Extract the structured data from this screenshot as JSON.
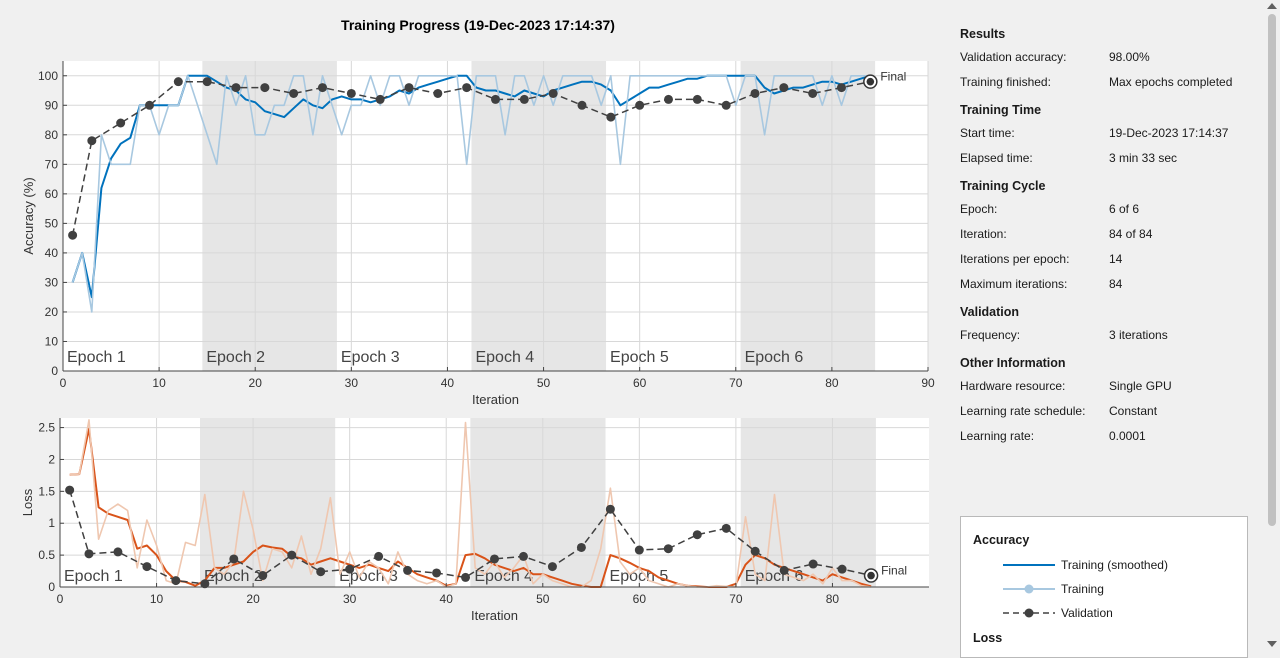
{
  "chart_data": [
    {
      "type": "line",
      "title": "Training Progress (19-Dec-2023 17:14:37)",
      "xlabel": "Iteration",
      "ylabel": "Accuracy (%)",
      "xlim": [
        0,
        90
      ],
      "ylim": [
        0,
        105
      ],
      "xticks": [
        0,
        10,
        20,
        30,
        40,
        50,
        60,
        70,
        80,
        90
      ],
      "yticks": [
        0,
        10,
        20,
        30,
        40,
        50,
        60,
        70,
        80,
        90,
        100
      ],
      "grid": true,
      "epochs": [
        {
          "label": "Epoch 1",
          "start": 0,
          "end": 14.5,
          "shaded": false
        },
        {
          "label": "Epoch 2",
          "start": 14.5,
          "end": 28.5,
          "shaded": true
        },
        {
          "label": "Epoch 3",
          "start": 28.5,
          "end": 42.5,
          "shaded": false
        },
        {
          "label": "Epoch 4",
          "start": 42.5,
          "end": 56.5,
          "shaded": true
        },
        {
          "label": "Epoch 5",
          "start": 56.5,
          "end": 70.5,
          "shaded": false
        },
        {
          "label": "Epoch 6",
          "start": 70.5,
          "end": 84.5,
          "shaded": true
        }
      ],
      "final_label": "Final",
      "series": [
        {
          "name": "Training (smoothed)",
          "color": "#0072bd",
          "x": [
            1,
            2,
            3,
            4,
            5,
            6,
            7,
            8,
            9,
            10,
            11,
            12,
            13,
            14,
            15,
            16,
            17,
            18,
            19,
            20,
            21,
            22,
            23,
            24,
            25,
            26,
            27,
            28,
            29,
            30,
            31,
            32,
            33,
            34,
            35,
            36,
            37,
            38,
            39,
            40,
            41,
            42,
            43,
            44,
            45,
            46,
            47,
            48,
            49,
            50,
            51,
            52,
            53,
            54,
            55,
            56,
            57,
            58,
            59,
            60,
            61,
            62,
            63,
            64,
            65,
            66,
            67,
            68,
            69,
            70,
            71,
            72,
            73,
            74,
            75,
            76,
            77,
            78,
            79,
            80,
            81,
            82,
            83,
            84
          ],
          "values": [
            30,
            40,
            25,
            62,
            72,
            77,
            79,
            90,
            90,
            90,
            90,
            90,
            100,
            100,
            100,
            98,
            96,
            95,
            92,
            91,
            88,
            87,
            86,
            89,
            92,
            90,
            89,
            92,
            93,
            92,
            92,
            91,
            92,
            93,
            95,
            94,
            96,
            97,
            98,
            99,
            100,
            100,
            96,
            95,
            95,
            94,
            93,
            95,
            94,
            93,
            95,
            96,
            97,
            98,
            98,
            97,
            95,
            90,
            92,
            94,
            96,
            96,
            97,
            98,
            99,
            99,
            100,
            100,
            100,
            100,
            100,
            100,
            96,
            94,
            95,
            96,
            96,
            97,
            98,
            98,
            97,
            98,
            99,
            100
          ]
        },
        {
          "name": "Training",
          "color": "#a8c8e0",
          "x": [
            1,
            2,
            3,
            4,
            5,
            6,
            7,
            8,
            9,
            10,
            11,
            12,
            13,
            14,
            15,
            16,
            17,
            18,
            19,
            20,
            21,
            22,
            23,
            24,
            25,
            26,
            27,
            28,
            29,
            30,
            31,
            32,
            33,
            34,
            35,
            36,
            37,
            38,
            39,
            40,
            41,
            42,
            43,
            44,
            45,
            46,
            47,
            48,
            49,
            50,
            51,
            52,
            53,
            54,
            55,
            56,
            57,
            58,
            59,
            60,
            61,
            62,
            63,
            64,
            65,
            66,
            67,
            68,
            69,
            70,
            71,
            72,
            73,
            74,
            75,
            76,
            77,
            78,
            79,
            80,
            81,
            82,
            83,
            84
          ],
          "values": [
            30,
            40,
            20,
            80,
            70,
            70,
            70,
            90,
            90,
            80,
            90,
            90,
            100,
            90,
            80,
            70,
            100,
            90,
            100,
            80,
            80,
            90,
            90,
            100,
            100,
            80,
            100,
            90,
            80,
            90,
            90,
            100,
            90,
            100,
            100,
            90,
            100,
            100,
            100,
            100,
            100,
            70,
            100,
            100,
            100,
            80,
            100,
            100,
            90,
            100,
            90,
            100,
            100,
            100,
            100,
            90,
            100,
            70,
            100,
            100,
            100,
            100,
            100,
            100,
            100,
            100,
            100,
            100,
            100,
            90,
            100,
            100,
            80,
            100,
            100,
            100,
            100,
            100,
            90,
            100,
            90,
            100,
            100,
            100
          ]
        },
        {
          "name": "Validation",
          "color": "#404040",
          "x": [
            1,
            3,
            6,
            9,
            12,
            15,
            18,
            21,
            24,
            27,
            30,
            33,
            36,
            39,
            42,
            45,
            48,
            51,
            54,
            57,
            60,
            63,
            66,
            69,
            72,
            75,
            78,
            81,
            84
          ],
          "values": [
            46,
            78,
            84,
            90,
            98,
            98,
            96,
            96,
            94,
            96,
            94,
            92,
            96,
            94,
            96,
            92,
            92,
            94,
            90,
            86,
            90,
            92,
            92,
            90,
            94,
            96,
            94,
            96,
            98
          ]
        }
      ]
    },
    {
      "type": "line",
      "xlabel": "Iteration",
      "ylabel": "Loss",
      "xlim": [
        0,
        90
      ],
      "ylim": [
        0,
        2.65
      ],
      "xticks": [
        0,
        10,
        20,
        30,
        40,
        50,
        60,
        70,
        80
      ],
      "yticks": [
        0,
        0.5,
        1,
        1.5,
        2,
        2.5
      ],
      "grid": true,
      "final_label": "Final",
      "series": [
        {
          "name": "Training (smoothed)",
          "color": "#d95319",
          "x": [
            1,
            2,
            3,
            4,
            5,
            6,
            7,
            8,
            9,
            10,
            11,
            12,
            13,
            14,
            15,
            16,
            17,
            18,
            19,
            20,
            21,
            22,
            23,
            24,
            25,
            26,
            27,
            28,
            29,
            30,
            31,
            32,
            33,
            34,
            35,
            36,
            37,
            38,
            39,
            40,
            41,
            42,
            43,
            44,
            45,
            46,
            47,
            48,
            49,
            50,
            51,
            52,
            53,
            54,
            55,
            56,
            57,
            58,
            59,
            60,
            61,
            62,
            63,
            64,
            65,
            66,
            67,
            68,
            69,
            70,
            71,
            72,
            73,
            74,
            75,
            76,
            77,
            78,
            79,
            80,
            81,
            82,
            83,
            84
          ],
          "values": [
            1.76,
            1.77,
            2.48,
            1.25,
            1.15,
            1.1,
            1.05,
            0.6,
            0.65,
            0.5,
            0.25,
            0.1,
            0.08,
            0.02,
            0.1,
            0.3,
            0.3,
            0.35,
            0.4,
            0.55,
            0.65,
            0.62,
            0.6,
            0.48,
            0.45,
            0.35,
            0.4,
            0.45,
            0.4,
            0.35,
            0.3,
            0.35,
            0.3,
            0.25,
            0.4,
            0.3,
            0.2,
            0.15,
            0.1,
            0.02,
            0.05,
            0.5,
            0.52,
            0.45,
            0.35,
            0.3,
            0.25,
            0.3,
            0.2,
            0.2,
            0.15,
            0.1,
            0.05,
            0.02,
            0.0,
            0.0,
            0.5,
            0.45,
            0.38,
            0.3,
            0.25,
            0.15,
            0.1,
            0.05,
            0.02,
            0.01,
            0.0,
            0.0,
            0.0,
            0.05,
            0.35,
            0.5,
            0.45,
            0.35,
            0.3,
            0.25,
            0.2,
            0.15,
            0.1,
            0.2,
            0.15,
            0.1,
            0.05,
            0.01
          ]
        },
        {
          "name": "Training",
          "color": "#efc7b0",
          "x": [
            1,
            2,
            3,
            4,
            5,
            6,
            7,
            8,
            9,
            10,
            11,
            12,
            13,
            14,
            15,
            16,
            17,
            18,
            19,
            20,
            21,
            22,
            23,
            24,
            25,
            26,
            27,
            28,
            29,
            30,
            31,
            32,
            33,
            34,
            35,
            36,
            37,
            38,
            39,
            40,
            41,
            42,
            43,
            44,
            45,
            46,
            47,
            48,
            49,
            50,
            51,
            52,
            53,
            54,
            55,
            56,
            57,
            58,
            59,
            60,
            61,
            62,
            63,
            64,
            65,
            66,
            67,
            68,
            69,
            70,
            71,
            72,
            73,
            74,
            75,
            76,
            77,
            78,
            79,
            80,
            81,
            82,
            83,
            84
          ],
          "values": [
            1.76,
            1.77,
            2.62,
            0.75,
            1.2,
            1.3,
            1.2,
            0.3,
            1.05,
            0.65,
            0.1,
            0.05,
            0.7,
            0.65,
            1.45,
            0.3,
            0.2,
            0.4,
            1.5,
            0.9,
            0.1,
            0.6,
            0.55,
            0.3,
            0.8,
            0.2,
            0.6,
            1.4,
            0.2,
            0.55,
            0.15,
            0.4,
            0.3,
            0.05,
            0.55,
            0.2,
            0.1,
            0.05,
            0.1,
            0.0,
            0.05,
            2.58,
            0.3,
            0.2,
            0.4,
            0.15,
            0.3,
            0.5,
            0.05,
            0.2,
            0.1,
            0.05,
            0.0,
            0.0,
            0.1,
            0.6,
            1.55,
            0.4,
            0.2,
            0.3,
            0.1,
            0.05,
            0.0,
            0.05,
            0.02,
            0.0,
            0.0,
            0.02,
            0.01,
            0.0,
            1.1,
            0.2,
            0.1,
            1.45,
            0.2,
            0.15,
            0.1,
            0.2,
            0.05,
            0.3,
            0.1,
            0.1,
            0.02,
            0.0
          ]
        },
        {
          "name": "Validation",
          "color": "#404040",
          "x": [
            1,
            3,
            6,
            9,
            12,
            15,
            18,
            21,
            24,
            27,
            30,
            33,
            36,
            39,
            42,
            45,
            48,
            51,
            54,
            57,
            60,
            63,
            66,
            69,
            72,
            75,
            78,
            81,
            84
          ],
          "values": [
            1.52,
            0.52,
            0.55,
            0.32,
            0.1,
            0.05,
            0.44,
            0.18,
            0.5,
            0.24,
            0.28,
            0.48,
            0.26,
            0.22,
            0.15,
            0.44,
            0.48,
            0.32,
            0.62,
            1.22,
            0.58,
            0.6,
            0.82,
            0.92,
            0.56,
            0.26,
            0.36,
            0.28,
            0.18
          ]
        }
      ]
    }
  ],
  "side": {
    "sections": [
      {
        "title": "Results",
        "rows": [
          {
            "k": "Validation accuracy:",
            "v": "98.00%"
          },
          {
            "k": "Training finished:",
            "v": "Max epochs completed"
          }
        ]
      },
      {
        "title": "Training Time",
        "rows": [
          {
            "k": "Start time:",
            "v": "19-Dec-2023 17:14:37"
          },
          {
            "k": "Elapsed time:",
            "v": "3 min 33 sec"
          }
        ]
      },
      {
        "title": "Training Cycle",
        "rows": [
          {
            "k": "Epoch:",
            "v": "6 of 6"
          },
          {
            "k": "Iteration:",
            "v": "84 of 84"
          },
          {
            "k": "Iterations per epoch:",
            "v": "14"
          },
          {
            "k": "Maximum iterations:",
            "v": "84"
          }
        ]
      },
      {
        "title": "Validation",
        "rows": [
          {
            "k": "Frequency:",
            "v": "3 iterations"
          }
        ]
      },
      {
        "title": "Other Information",
        "rows": [
          {
            "k": "Hardware resource:",
            "v": "Single GPU"
          },
          {
            "k": "Learning rate schedule:",
            "v": "Constant"
          },
          {
            "k": "Learning rate:",
            "v": "0.0001"
          }
        ]
      }
    ]
  },
  "legend": {
    "accuracy_title": "Accuracy",
    "items": [
      "Training (smoothed)",
      "Training",
      "Validation"
    ],
    "loss_title": "Loss",
    "colors": {
      "smoothed": "#0072bd",
      "training": "#a8c8e0",
      "validation": "#404040"
    }
  }
}
